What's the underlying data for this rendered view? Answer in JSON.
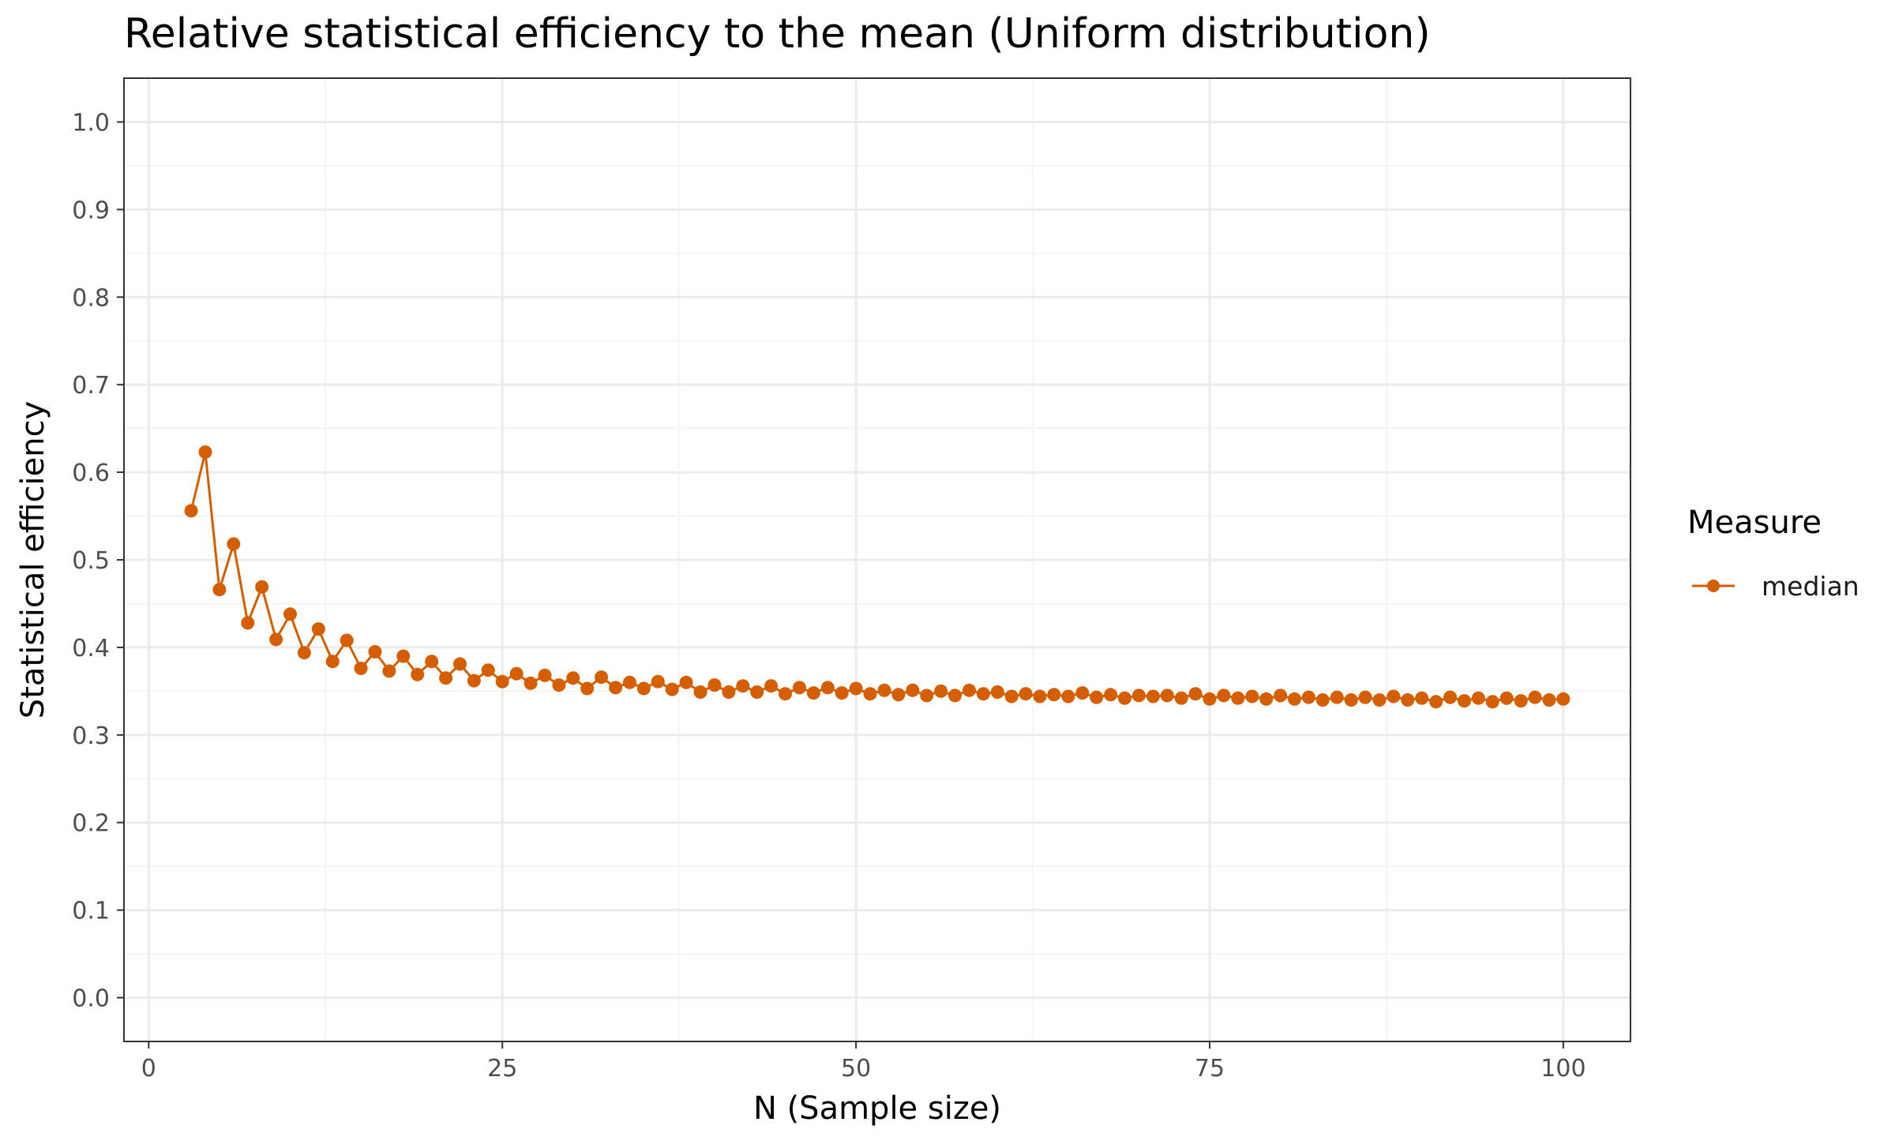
{
  "chart_data": {
    "type": "line",
    "title": "Relative statistical efficiency to the mean (Uniform distribution)",
    "xlabel": "N (Sample size)",
    "ylabel": "Statistical efficiency",
    "xlim": [
      -1.75,
      104.75
    ],
    "ylim": [
      -0.05,
      1.05
    ],
    "x_ticks": [
      0,
      25,
      50,
      75,
      100
    ],
    "x_tick_labels": [
      "0",
      "25",
      "50",
      "75",
      "100"
    ],
    "y_ticks": [
      0.0,
      0.1,
      0.2,
      0.3,
      0.4,
      0.5,
      0.6,
      0.7,
      0.8,
      0.9,
      1.0
    ],
    "y_tick_labels": [
      "0.0",
      "0.1",
      "0.2",
      "0.3",
      "0.4",
      "0.5",
      "0.6",
      "0.7",
      "0.8",
      "0.9",
      "1.0"
    ],
    "grid": true,
    "legend": {
      "title": "Measure",
      "position": "right"
    },
    "colors": {
      "series": "#d55e00",
      "panel_border": "#333333",
      "grid_major": "#ebebeb",
      "grid_minor": "#f5f5f5"
    },
    "series": [
      {
        "name": "median",
        "x": [
          3,
          4,
          5,
          6,
          7,
          8,
          9,
          10,
          11,
          12,
          13,
          14,
          15,
          16,
          17,
          18,
          19,
          20,
          21,
          22,
          23,
          24,
          25,
          26,
          27,
          28,
          29,
          30,
          31,
          32,
          33,
          34,
          35,
          36,
          37,
          38,
          39,
          40,
          41,
          42,
          43,
          44,
          45,
          46,
          47,
          48,
          49,
          50,
          51,
          52,
          53,
          54,
          55,
          56,
          57,
          58,
          59,
          60,
          61,
          62,
          63,
          64,
          65,
          66,
          67,
          68,
          69,
          70,
          71,
          72,
          73,
          74,
          75,
          76,
          77,
          78,
          79,
          80,
          81,
          82,
          83,
          84,
          85,
          86,
          87,
          88,
          89,
          90,
          91,
          92,
          93,
          94,
          95,
          96,
          97,
          98,
          99,
          100
        ],
        "values": [
          0.556,
          0.623,
          0.466,
          0.518,
          0.428,
          0.469,
          0.409,
          0.438,
          0.394,
          0.421,
          0.384,
          0.408,
          0.376,
          0.395,
          0.373,
          0.39,
          0.369,
          0.384,
          0.365,
          0.381,
          0.362,
          0.374,
          0.361,
          0.37,
          0.359,
          0.368,
          0.357,
          0.365,
          0.353,
          0.366,
          0.354,
          0.36,
          0.353,
          0.361,
          0.352,
          0.36,
          0.349,
          0.357,
          0.349,
          0.356,
          0.349,
          0.356,
          0.347,
          0.354,
          0.348,
          0.354,
          0.348,
          0.353,
          0.347,
          0.351,
          0.346,
          0.351,
          0.345,
          0.35,
          0.345,
          0.351,
          0.347,
          0.349,
          0.344,
          0.347,
          0.344,
          0.346,
          0.344,
          0.348,
          0.343,
          0.346,
          0.342,
          0.345,
          0.344,
          0.345,
          0.342,
          0.347,
          0.341,
          0.345,
          0.342,
          0.344,
          0.341,
          0.345,
          0.341,
          0.343,
          0.34,
          0.343,
          0.34,
          0.343,
          0.34,
          0.344,
          0.34,
          0.342,
          0.338,
          0.343,
          0.339,
          0.342,
          0.338,
          0.342,
          0.339,
          0.343,
          0.34,
          0.341
        ]
      }
    ]
  }
}
